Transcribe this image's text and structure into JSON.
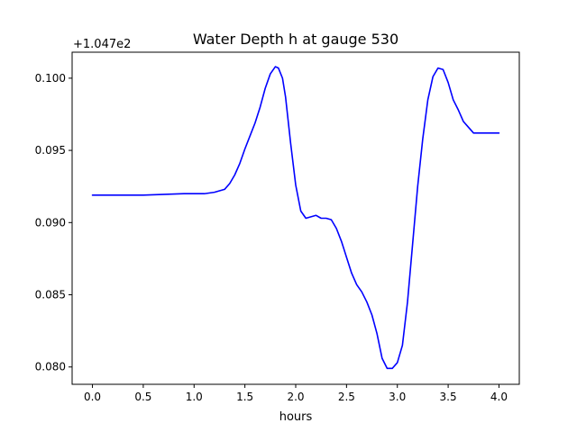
{
  "chart_data": {
    "type": "line",
    "title": "Water Depth h at gauge 530",
    "xlabel": "hours",
    "ylabel": "",
    "offset_label": "+1.047e2",
    "xlim": [
      -0.2,
      4.2
    ],
    "ylim": [
      0.0788,
      0.1018
    ],
    "x_ticks": [
      0.0,
      0.5,
      1.0,
      1.5,
      2.0,
      2.5,
      3.0,
      3.5,
      4.0
    ],
    "x_tick_labels": [
      "0.0",
      "0.5",
      "1.0",
      "1.5",
      "2.0",
      "2.5",
      "3.0",
      "3.5",
      "4.0"
    ],
    "y_ticks": [
      0.08,
      0.085,
      0.09,
      0.095,
      0.1
    ],
    "y_tick_labels": [
      "0.080",
      "0.085",
      "0.090",
      "0.095",
      "0.100"
    ],
    "grid": false,
    "series": [
      {
        "color": "#0000ff",
        "x": [
          0.0,
          0.5,
          0.9,
          1.0,
          1.1,
          1.2,
          1.3,
          1.35,
          1.4,
          1.45,
          1.5,
          1.55,
          1.6,
          1.65,
          1.7,
          1.75,
          1.8,
          1.83,
          1.87,
          1.9,
          1.95,
          2.0,
          2.05,
          2.1,
          2.15,
          2.2,
          2.25,
          2.3,
          2.35,
          2.4,
          2.45,
          2.5,
          2.55,
          2.6,
          2.65,
          2.7,
          2.75,
          2.8,
          2.85,
          2.9,
          2.95,
          3.0,
          3.05,
          3.1,
          3.15,
          3.2,
          3.25,
          3.3,
          3.35,
          3.4,
          3.45,
          3.5,
          3.55,
          3.6,
          3.65,
          3.7,
          3.75,
          3.8,
          3.85,
          3.9,
          3.95,
          4.0
        ],
        "y": [
          0.0919,
          0.0919,
          0.092,
          0.092,
          0.092,
          0.0921,
          0.0923,
          0.0927,
          0.0933,
          0.0941,
          0.0951,
          0.096,
          0.0969,
          0.098,
          0.0993,
          0.1003,
          0.1008,
          0.1007,
          0.1,
          0.0987,
          0.0955,
          0.0926,
          0.0908,
          0.0903,
          0.0904,
          0.0905,
          0.0903,
          0.0903,
          0.0902,
          0.0896,
          0.0887,
          0.0876,
          0.0865,
          0.0857,
          0.0852,
          0.0845,
          0.0836,
          0.0823,
          0.0806,
          0.0799,
          0.0799,
          0.0803,
          0.0815,
          0.0845,
          0.0885,
          0.0925,
          0.0958,
          0.0985,
          0.1001,
          0.1007,
          0.1006,
          0.0997,
          0.0985,
          0.0978,
          0.097,
          0.0966,
          0.0962,
          0.0962,
          0.0962,
          0.0962,
          0.0962,
          0.0962
        ]
      }
    ]
  }
}
